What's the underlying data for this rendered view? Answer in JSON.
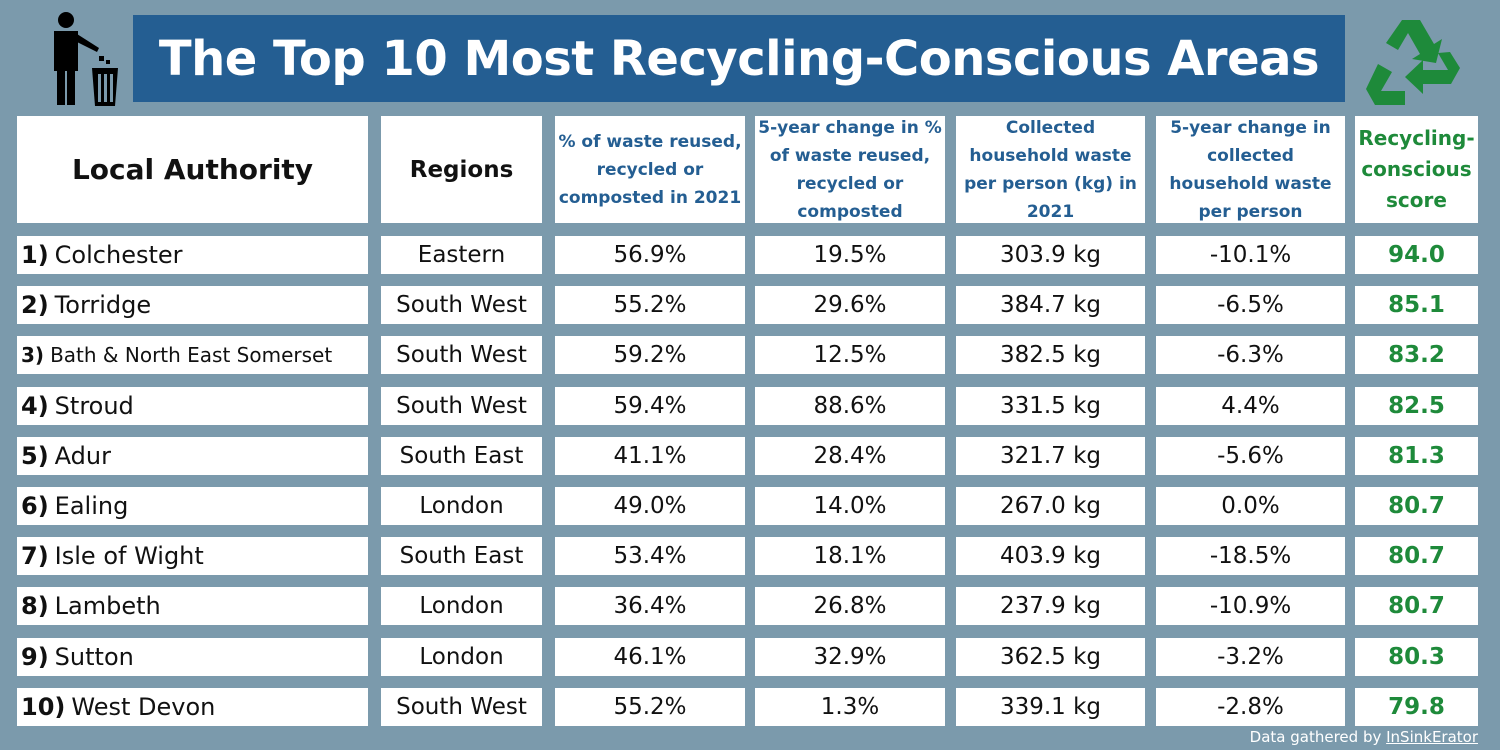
{
  "title": "The Top 10 Most Recycling-Conscious Areas",
  "icons": {
    "left": "person-bin-icon",
    "right": "recycle-icon"
  },
  "colors": {
    "background": "#7b9aac",
    "title_bg": "#245e92",
    "header_blue": "#245e92",
    "score_green": "#1e8a3a"
  },
  "headers": {
    "authority": "Local Authority",
    "region": "Regions",
    "pct": [
      "% of waste reused,",
      "recycled or",
      "composted in 2021"
    ],
    "pct_change": [
      "5-year change in %",
      "of waste reused,",
      "recycled or",
      "composted"
    ],
    "collected": [
      "Collected",
      "household waste",
      "per person (kg) in",
      "2021"
    ],
    "collected_change": [
      "5-year change in",
      "collected",
      "household waste",
      "per person"
    ],
    "score": [
      "Recycling-",
      "conscious",
      "score"
    ]
  },
  "chart_data": {
    "type": "table",
    "title": "The Top 10 Most Recycling-Conscious Areas",
    "columns": [
      "Local Authority",
      "Regions",
      "% of waste reused, recycled or composted in 2021",
      "5-year change in % of waste reused, recycled or composted",
      "Collected household waste per person (kg) in 2021",
      "5-year change in collected household waste per person",
      "Recycling-conscious score"
    ],
    "rows": [
      {
        "rank": "1)",
        "name": "Colchester",
        "region": "Eastern",
        "pct": "56.9%",
        "pct_change": "19.5%",
        "collected": "303.9 kg",
        "collected_change": "-10.1%",
        "score": "94.0"
      },
      {
        "rank": "2)",
        "name": "Torridge",
        "region": "South West",
        "pct": "55.2%",
        "pct_change": "29.6%",
        "collected": "384.7 kg",
        "collected_change": "-6.5%",
        "score": "85.1"
      },
      {
        "rank": "3)",
        "name": "Bath & North East Somerset",
        "region": "South West",
        "pct": "59.2%",
        "pct_change": "12.5%",
        "collected": "382.5 kg",
        "collected_change": "-6.3%",
        "score": "83.2"
      },
      {
        "rank": "4)",
        "name": "Stroud",
        "region": "South West",
        "pct": "59.4%",
        "pct_change": "88.6%",
        "collected": "331.5 kg",
        "collected_change": "4.4%",
        "score": "82.5"
      },
      {
        "rank": "5)",
        "name": "Adur",
        "region": "South East",
        "pct": "41.1%",
        "pct_change": "28.4%",
        "collected": "321.7 kg",
        "collected_change": "-5.6%",
        "score": "81.3"
      },
      {
        "rank": "6)",
        "name": "Ealing",
        "region": "London",
        "pct": "49.0%",
        "pct_change": "14.0%",
        "collected": "267.0 kg",
        "collected_change": "0.0%",
        "score": "80.7"
      },
      {
        "rank": "7)",
        "name": "Isle of Wight",
        "region": "South East",
        "pct": "53.4%",
        "pct_change": "18.1%",
        "collected": "403.9 kg",
        "collected_change": "-18.5%",
        "score": "80.7"
      },
      {
        "rank": "8)",
        "name": "Lambeth",
        "region": "London",
        "pct": "36.4%",
        "pct_change": "26.8%",
        "collected": "237.9 kg",
        "collected_change": "-10.9%",
        "score": "80.7"
      },
      {
        "rank": "9)",
        "name": "Sutton",
        "region": "London",
        "pct": "46.1%",
        "pct_change": "32.9%",
        "collected": "362.5 kg",
        "collected_change": "-3.2%",
        "score": "80.3"
      },
      {
        "rank": "10)",
        "name": "West Devon",
        "region": "South West",
        "pct": "55.2%",
        "pct_change": "1.3%",
        "collected": "339.1 kg",
        "collected_change": "-2.8%",
        "score": "79.8"
      }
    ]
  },
  "footer": {
    "prefix": "Data gathered by",
    "source": "InSinkErator"
  }
}
